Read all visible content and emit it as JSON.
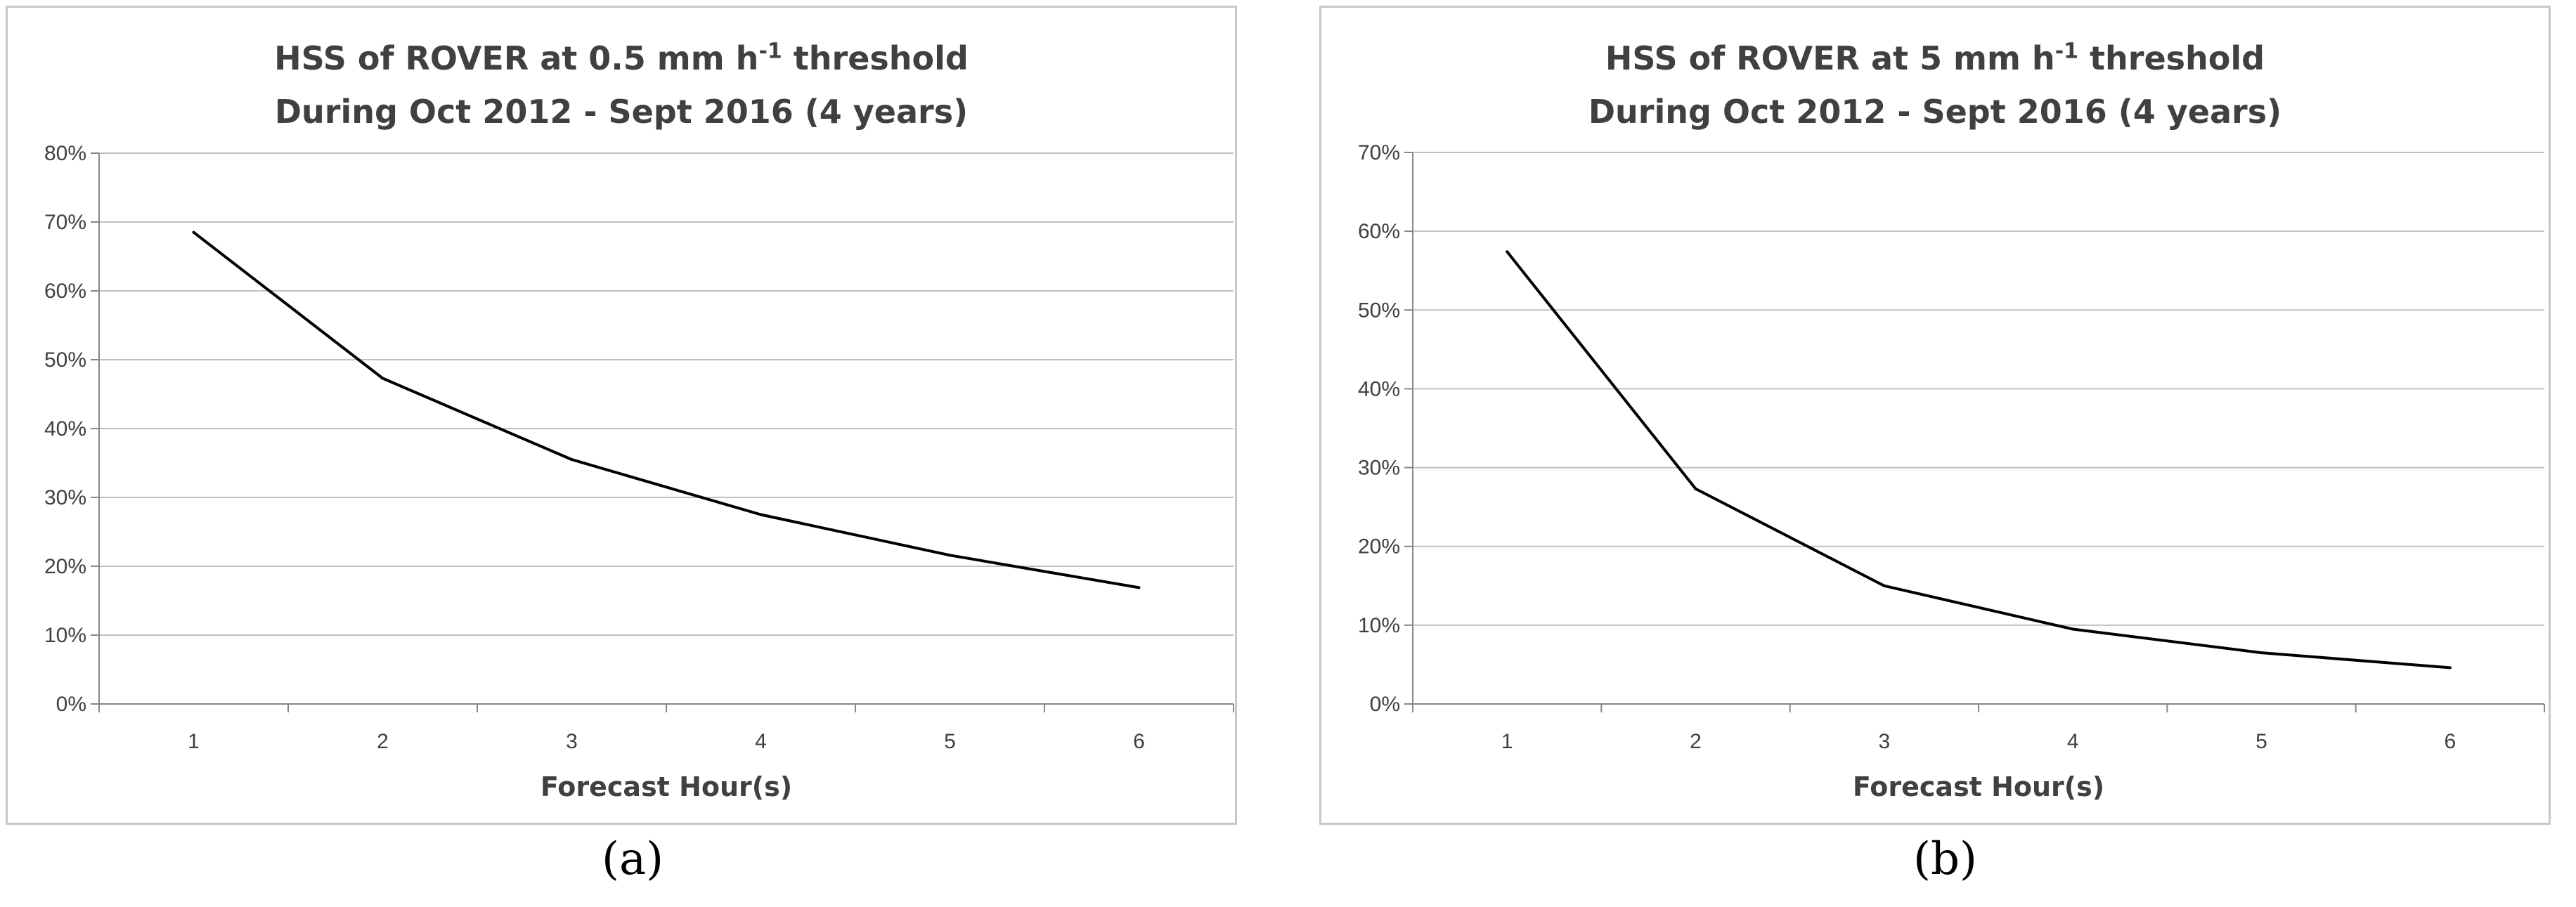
{
  "colors": {
    "line": "#000000",
    "grid": "#c0c0c0",
    "axis": "#868686",
    "text": "#404040",
    "border": "#c8c8c8"
  },
  "chart_data": [
    {
      "type": "line",
      "panel_label": "(a)",
      "title_line1_pre": "HSS of ROVER at 0.5 mm h",
      "title_line1_sup": "-1",
      "title_line1_post": " threshold",
      "title_line2": "During Oct 2012 - Sept 2016 (4 years)",
      "xlabel": "Forecast Hour(s)",
      "ylabel": "",
      "categories": [
        "1",
        "2",
        "3",
        "4",
        "5",
        "6"
      ],
      "values": [
        68.5,
        47.3,
        35.5,
        27.5,
        21.6,
        16.9
      ],
      "ylim": [
        0,
        80
      ],
      "yticks": [
        0,
        10,
        20,
        30,
        40,
        50,
        60,
        70,
        80
      ],
      "ytick_labels": [
        "0%",
        "10%",
        "20%",
        "30%",
        "40%",
        "50%",
        "60%",
        "70%",
        "80%"
      ],
      "grid": true,
      "legend": "none"
    },
    {
      "type": "line",
      "panel_label": "(b)",
      "title_line1_pre": "HSS of ROVER at 5 mm h",
      "title_line1_sup": "-1",
      "title_line1_post": " threshold",
      "title_line2": "During Oct 2012 - Sept 2016 (4 years)",
      "xlabel": "Forecast Hour(s)",
      "ylabel": "",
      "categories": [
        "1",
        "2",
        "3",
        "4",
        "5",
        "6"
      ],
      "values": [
        57.4,
        27.3,
        15.0,
        9.5,
        6.5,
        4.6
      ],
      "ylim": [
        0,
        70
      ],
      "yticks": [
        0,
        10,
        20,
        30,
        40,
        50,
        60,
        70
      ],
      "ytick_labels": [
        "0%",
        "10%",
        "20%",
        "30%",
        "40%",
        "50%",
        "60%",
        "70%"
      ],
      "grid": true,
      "legend": "none"
    }
  ]
}
